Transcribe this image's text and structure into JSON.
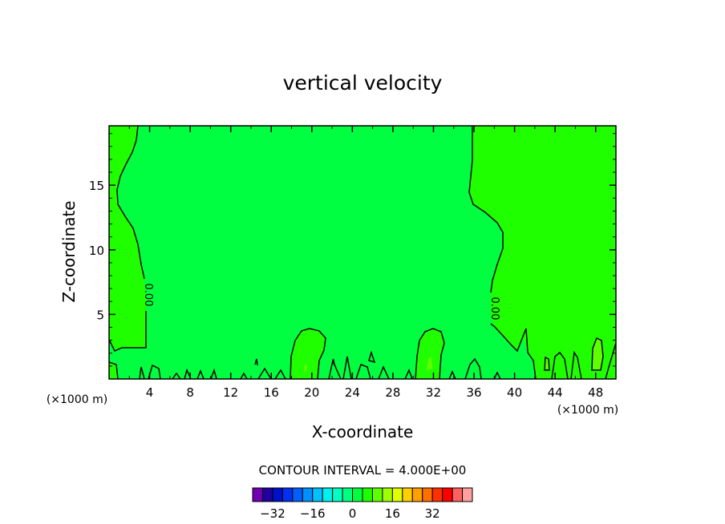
{
  "chart_data": {
    "type": "contour",
    "title": "vertical velocity",
    "xlabel": "X-coordinate",
    "ylabel": "Z-coordinate",
    "x_unit": "(×1000 m)",
    "x_unit_right": "(×1000 m)",
    "xlim": [
      0,
      50
    ],
    "ylim": [
      0,
      19.6
    ],
    "x_ticks": [
      "4",
      "8",
      "12",
      "16",
      "20",
      "24",
      "28",
      "32",
      "36",
      "40",
      "44",
      "48"
    ],
    "y_ticks": [
      "5",
      "10",
      "15"
    ],
    "contour_labels": [
      "0.00",
      "0.00"
    ],
    "contour_interval_text": "CONTOUR INTERVAL = 4.000E+00",
    "colorbar": {
      "labels": [
        "−32",
        "−16",
        "0",
        "16",
        "32"
      ],
      "label_values": [
        -32,
        -16,
        0,
        16,
        32
      ],
      "min": -40,
      "max": 40,
      "interval": 4,
      "colors": [
        "#7000b0",
        "#2000a0",
        "#0010c8",
        "#0030f0",
        "#0060ff",
        "#0090ff",
        "#00c0ff",
        "#00f0f0",
        "#00ffc0",
        "#00ff80",
        "#00ff40",
        "#20ff00",
        "#60ff00",
        "#a0ff00",
        "#e0ff00",
        "#ffd000",
        "#ffa000",
        "#ff7000",
        "#ff3000",
        "#ff0000",
        "#ff6060",
        "#ffa0a0"
      ]
    },
    "fill_colors": {
      "base": "#00ff40",
      "positive": "#20ff00",
      "positive_high": "#60ff00"
    }
  }
}
